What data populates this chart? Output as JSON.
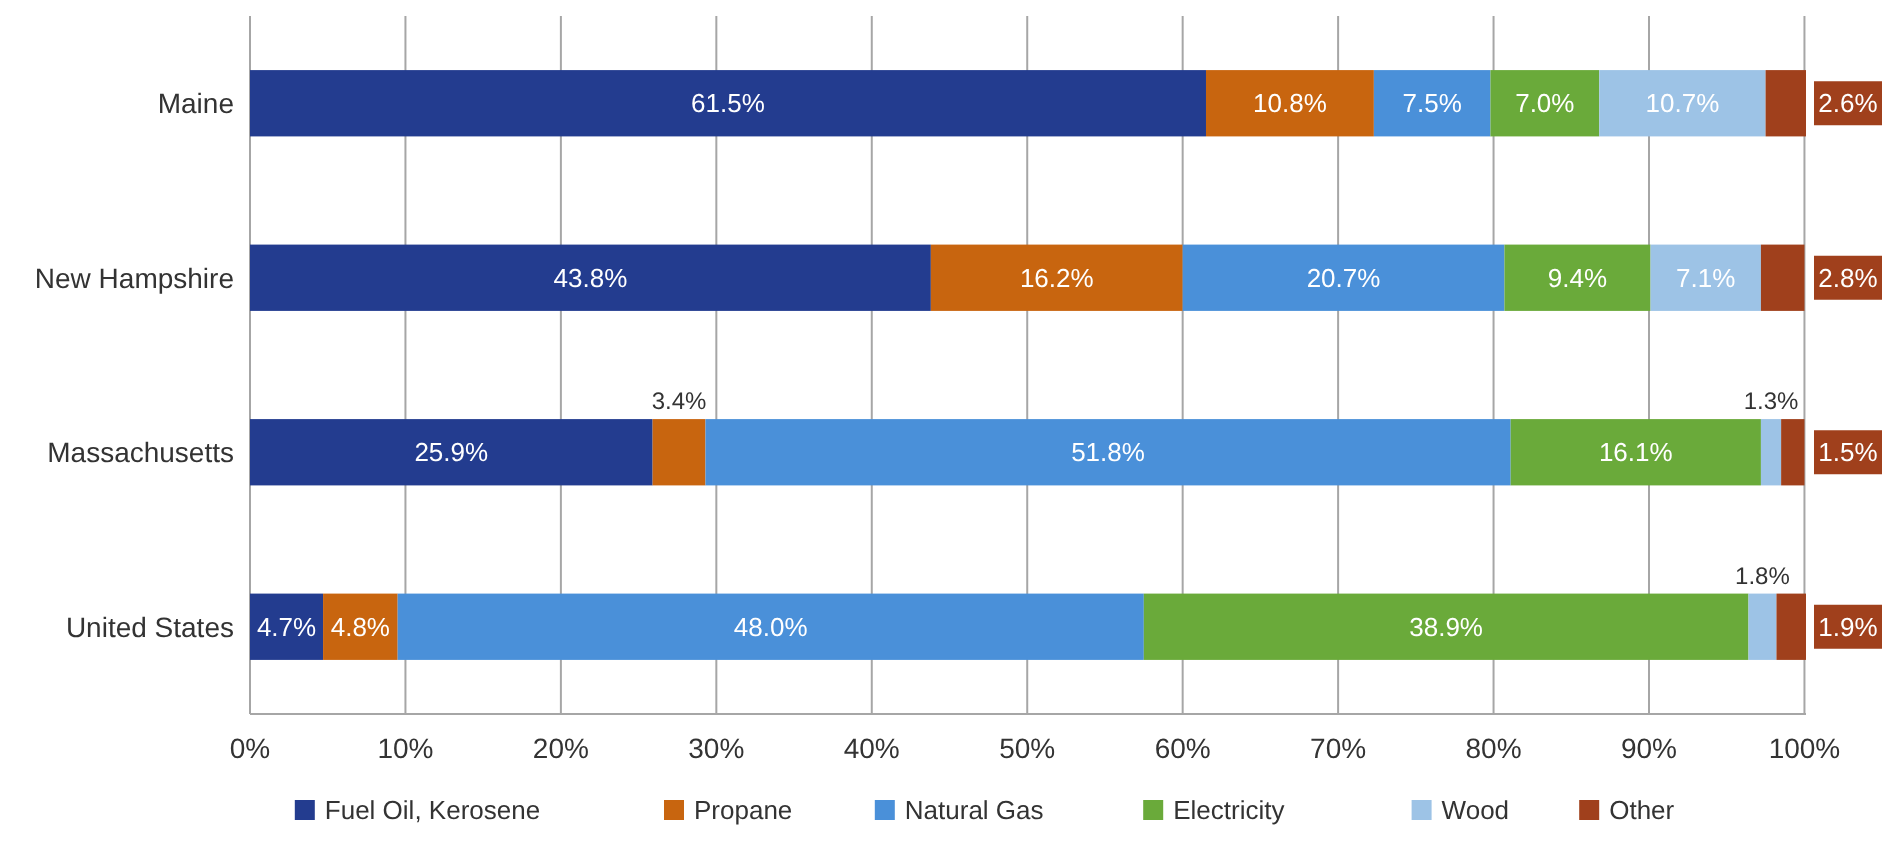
{
  "chart_data": {
    "type": "bar",
    "orientation": "horizontal",
    "stacked": true,
    "categories": [
      "Maine",
      "New Hampshire",
      "Massachusetts",
      "United States"
    ],
    "xlim": [
      0,
      100.1
    ],
    "xticks": [
      {
        "value": 0,
        "label": "0%"
      },
      {
        "value": 10,
        "label": "10%"
      },
      {
        "value": 20,
        "label": "20%"
      },
      {
        "value": 30,
        "label": "30%"
      },
      {
        "value": 40,
        "label": "40%"
      },
      {
        "value": 50,
        "label": "50%"
      },
      {
        "value": 60,
        "label": "60%"
      },
      {
        "value": 70,
        "label": "70%"
      },
      {
        "value": 80,
        "label": "80%"
      },
      {
        "value": 90,
        "label": "90%"
      },
      {
        "value": 100,
        "label": "100%"
      }
    ],
    "grid": "x",
    "legend": "bottom",
    "series": [
      {
        "name": "Fuel Oil, Kerosene",
        "color": "#233c8f",
        "values": [
          61.5,
          43.8,
          25.9,
          4.7
        ],
        "value_labels": [
          "61.5%",
          "43.8%",
          "25.9%",
          "4.7%"
        ]
      },
      {
        "name": "Propane",
        "color": "#c8650f",
        "values": [
          10.8,
          16.2,
          3.4,
          4.8
        ],
        "value_labels": [
          "10.8%",
          "16.2%",
          "3.4%",
          "4.8%"
        ]
      },
      {
        "name": "Natural Gas",
        "color": "#4a90d9",
        "values": [
          7.5,
          20.7,
          51.8,
          48.0
        ],
        "value_labels": [
          "7.5%",
          "20.7%",
          "51.8%",
          "48.0%"
        ]
      },
      {
        "name": "Electricity",
        "color": "#6aaa3a",
        "values": [
          7.0,
          9.4,
          16.1,
          38.9
        ],
        "value_labels": [
          "7.0%",
          "9.4%",
          "16.1%",
          "38.9%"
        ]
      },
      {
        "name": "Wood",
        "color": "#9dc3e6",
        "values": [
          10.7,
          7.1,
          1.3,
          1.8
        ],
        "value_labels": [
          "10.7%",
          "7.1%",
          "1.3%",
          "1.8%"
        ]
      },
      {
        "name": "Other",
        "color": "#a0401c",
        "values": [
          2.6,
          2.8,
          1.5,
          1.9
        ],
        "value_labels": [
          "2.6%",
          "2.8%",
          "1.5%",
          "1.9%"
        ]
      }
    ]
  }
}
